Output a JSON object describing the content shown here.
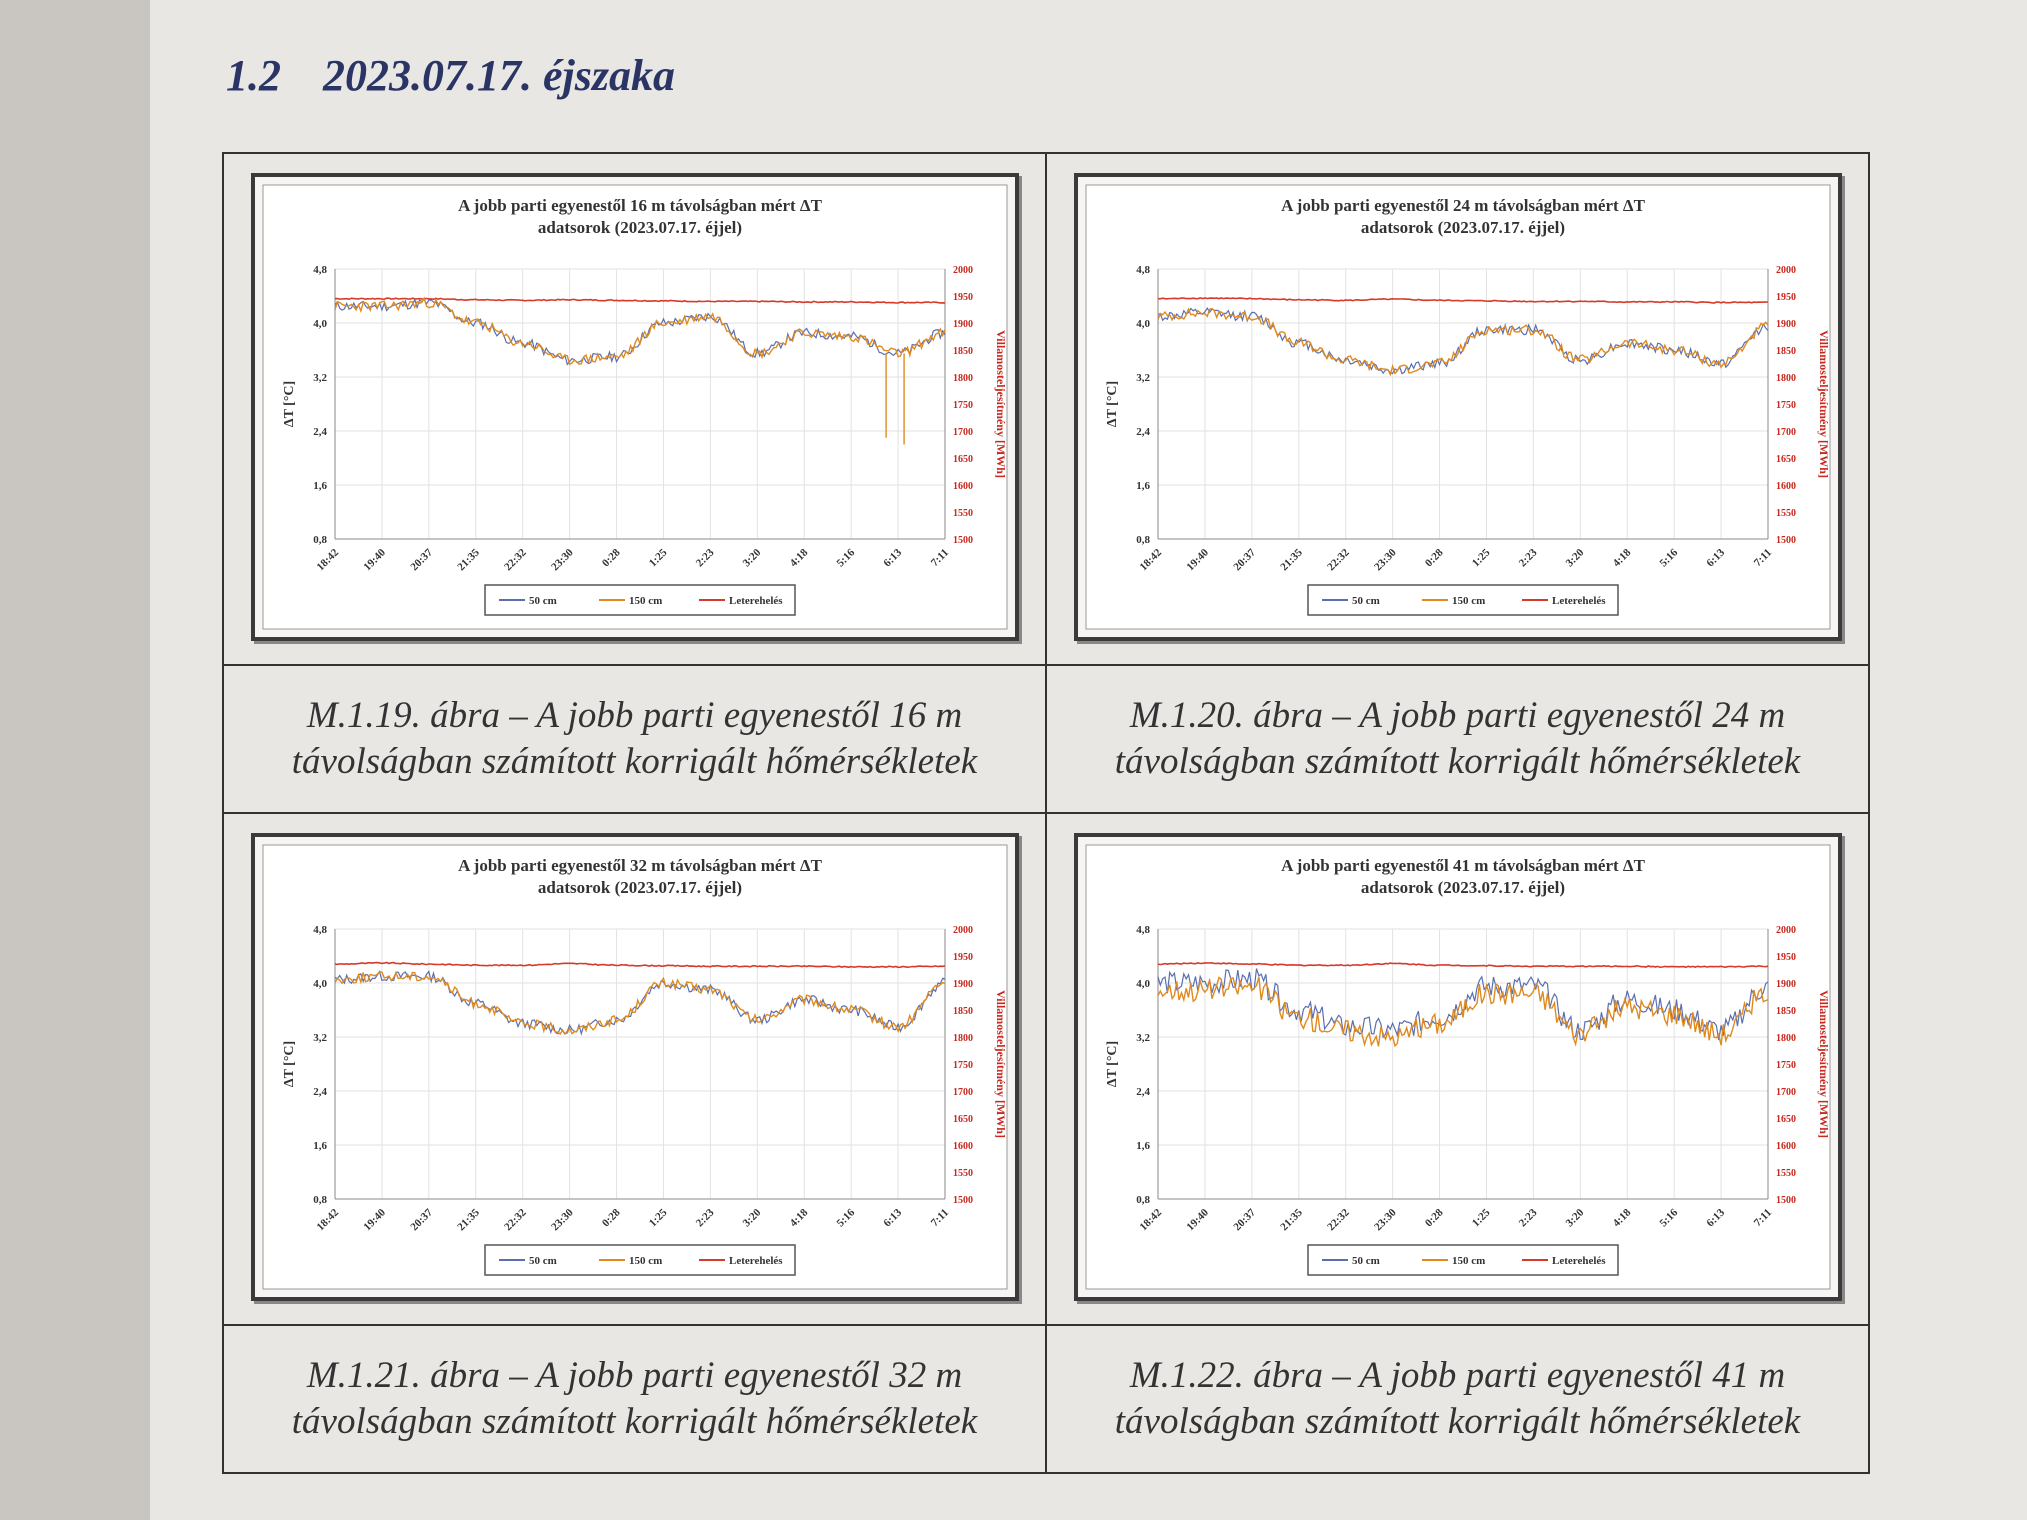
{
  "section": {
    "number": "1.2",
    "title": "2023.07.17. éjszaka"
  },
  "x_ticks": [
    "18:42",
    "19:40",
    "20:37",
    "21:35",
    "22:32",
    "23:30",
    "0:28",
    "1:25",
    "2:23",
    "3:20",
    "4:18",
    "5:16",
    "6:13",
    "7:11"
  ],
  "colors": {
    "s50": "#5b6fb0",
    "s150": "#e08a1e",
    "load": "#d63a2a",
    "right_axis_text": "#c8281e"
  },
  "charts": [
    {
      "title_line1": "A jobb parti egyenestől 16 m távolságban mért ΔT",
      "title_line2": "adatsorok  (2023.07.17. éjjel)",
      "caption_line1": "M.1.19. ábra – A jobb parti egyenestől 16 m",
      "caption_line2": "távolságban számított korrigált hőmérsékletek",
      "ylabel": "ΔT [°C]",
      "y2label": "Villamosteljesítmény [MWh]",
      "y_ticks": [
        "0,8",
        "1,6",
        "2,4",
        "3,2",
        "4,0",
        "4,8"
      ],
      "y2_ticks": [
        "1500",
        "1550",
        "1600",
        "1650",
        "1700",
        "1750",
        "1800",
        "1850",
        "1900",
        "1950",
        "2000"
      ],
      "legend": [
        "50 cm",
        "150 cm",
        "Leterehelés"
      ],
      "chart_data": {
        "type": "line",
        "x": [
          "18:42",
          "19:40",
          "20:37",
          "21:35",
          "22:32",
          "23:30",
          "0:28",
          "1:25",
          "2:23",
          "3:20",
          "4:18",
          "5:16",
          "6:13",
          "7:11"
        ],
        "ylim": [
          0.8,
          4.8
        ],
        "y2lim": [
          1500,
          2000
        ],
        "series": [
          {
            "name": "50 cm",
            "axis": "left",
            "values": [
              4.25,
              4.25,
              4.3,
              4.0,
              3.7,
              3.45,
              3.5,
              4.0,
              4.1,
              3.55,
              3.85,
              3.8,
              3.55,
              3.85
            ]
          },
          {
            "name": "150 cm",
            "axis": "left",
            "values": [
              4.25,
              4.25,
              4.3,
              4.0,
              3.7,
              3.45,
              3.5,
              4.0,
              4.1,
              3.55,
              3.85,
              3.8,
              3.55,
              3.85
            ]
          },
          {
            "name": "Leterehelés",
            "axis": "right",
            "values": [
              1945,
              1945,
              1945,
              1943,
              1942,
              1943,
              1942,
              1941,
              1940,
              1940,
              1939,
              1939,
              1938,
              1938
            ]
          }
        ],
        "dips": [
          {
            "x": "6:13",
            "values": [
              2.3,
              2.2
            ]
          }
        ]
      }
    },
    {
      "title_line1": "A jobb parti egyenestől 24 m távolságban mért ΔT",
      "title_line2": "adatsorok  (2023.07.17. éjjel)",
      "caption_line1": "M.1.20. ábra – A jobb parti egyenestől 24 m",
      "caption_line2": "távolságban számított korrigált hőmérsékletek",
      "ylabel": "ΔT [°C]",
      "y2label": "Villamosteljesítmény [MWh]",
      "y_ticks": [
        "0,8",
        "1,6",
        "2,4",
        "3,2",
        "4,0",
        "4,8"
      ],
      "y2_ticks": [
        "1500",
        "1550",
        "1600",
        "1650",
        "1700",
        "1750",
        "1800",
        "1850",
        "1900",
        "1950",
        "2000"
      ],
      "legend": [
        "50 cm",
        "150 cm",
        "Leterehelés"
      ],
      "chart_data": {
        "type": "line",
        "x": [
          "18:42",
          "19:40",
          "20:37",
          "21:35",
          "22:32",
          "23:30",
          "0:28",
          "1:25",
          "2:23",
          "3:20",
          "4:18",
          "5:16",
          "6:13",
          "7:11"
        ],
        "ylim": [
          0.8,
          4.8
        ],
        "y2lim": [
          1500,
          2000
        ],
        "series": [
          {
            "name": "50 cm",
            "axis": "left",
            "values": [
              4.1,
              4.15,
              4.1,
              3.7,
              3.45,
              3.3,
              3.4,
              3.9,
              3.9,
              3.45,
              3.7,
              3.6,
              3.4,
              3.95
            ]
          },
          {
            "name": "150 cm",
            "axis": "left",
            "values": [
              4.1,
              4.15,
              4.1,
              3.7,
              3.45,
              3.3,
              3.4,
              3.9,
              3.9,
              3.45,
              3.7,
              3.6,
              3.4,
              3.95
            ]
          },
          {
            "name": "Leterehelés",
            "axis": "right",
            "values": [
              1945,
              1946,
              1945,
              1943,
              1942,
              1944,
              1942,
              1941,
              1940,
              1940,
              1939,
              1939,
              1938,
              1938
            ]
          }
        ]
      }
    },
    {
      "title_line1": "A jobb parti egyenestől 32 m távolságban mért ΔT",
      "title_line2": "adatsorok  (2023.07.17. éjjel)",
      "caption_line1": "M.1.21. ábra – A jobb parti egyenestől 32 m",
      "caption_line2": "távolságban számított korrigált hőmérsékletek",
      "ylabel": "ΔT [°C]",
      "y2label": "Villamosteljesítmény [MWh]",
      "y_ticks": [
        "0,8",
        "1,6",
        "2,4",
        "3,2",
        "4,0",
        "4,8"
      ],
      "y2_ticks": [
        "1500",
        "1550",
        "1600",
        "1650",
        "1700",
        "1750",
        "1800",
        "1850",
        "1900",
        "1950",
        "2000"
      ],
      "legend": [
        "50 cm",
        "150 cm",
        "Leterehelés"
      ],
      "chart_data": {
        "type": "line",
        "x": [
          "18:42",
          "19:40",
          "20:37",
          "21:35",
          "22:32",
          "23:30",
          "0:28",
          "1:25",
          "2:23",
          "3:20",
          "4:18",
          "5:16",
          "6:13",
          "7:11"
        ],
        "ylim": [
          0.8,
          4.8
        ],
        "y2lim": [
          1500,
          2000
        ],
        "series": [
          {
            "name": "50 cm",
            "axis": "left",
            "values": [
              4.05,
              4.1,
              4.1,
              3.7,
              3.4,
              3.3,
              3.45,
              4.0,
              3.9,
              3.45,
              3.75,
              3.6,
              3.35,
              4.0
            ]
          },
          {
            "name": "150 cm",
            "axis": "left",
            "values": [
              4.05,
              4.1,
              4.1,
              3.7,
              3.4,
              3.3,
              3.45,
              4.0,
              3.9,
              3.45,
              3.75,
              3.6,
              3.35,
              4.0
            ]
          },
          {
            "name": "Leterehelés",
            "axis": "right",
            "values": [
              1935,
              1937,
              1935,
              1933,
              1933,
              1936,
              1933,
              1932,
              1931,
              1931,
              1931,
              1930,
              1930,
              1931
            ]
          }
        ]
      }
    },
    {
      "title_line1": "A jobb parti egyenestől 41 m távolságban mért ΔT",
      "title_line2": "adatsorok  (2023.07.17. éjjel)",
      "caption_line1": "M.1.22. ábra – A jobb parti egyenestől 41 m",
      "caption_line2": "távolságban számított korrigált hőmérsékletek",
      "ylabel": "ΔT [°C]",
      "y2label": "Villamosteljesítmény [MWh]",
      "y_ticks": [
        "0,8",
        "1,6",
        "2,4",
        "3,2",
        "4,0",
        "4,8"
      ],
      "y2_ticks": [
        "1500",
        "1550",
        "1600",
        "1650",
        "1700",
        "1750",
        "1800",
        "1850",
        "1900",
        "1950",
        "2000"
      ],
      "legend": [
        "50 cm",
        "150 cm",
        "Leterehelés"
      ],
      "chart_data": {
        "type": "line",
        "x": [
          "18:42",
          "19:40",
          "20:37",
          "21:35",
          "22:32",
          "23:30",
          "0:28",
          "1:25",
          "2:23",
          "3:20",
          "4:18",
          "5:16",
          "6:13",
          "7:11"
        ],
        "ylim": [
          0.8,
          4.8
        ],
        "y2lim": [
          1500,
          2000
        ],
        "series": [
          {
            "name": "50 cm",
            "axis": "left",
            "values": [
              4.0,
              4.0,
              4.05,
              3.6,
              3.35,
              3.3,
              3.5,
              3.95,
              3.95,
              3.3,
              3.75,
              3.6,
              3.3,
              3.95
            ]
          },
          {
            "name": "150 cm",
            "axis": "left",
            "values": [
              3.9,
              3.9,
              3.95,
              3.5,
              3.3,
              3.2,
              3.4,
              3.85,
              3.85,
              3.25,
              3.65,
              3.55,
              3.25,
              3.85
            ]
          },
          {
            "name": "Leterehelés",
            "axis": "right",
            "values": [
              1935,
              1937,
              1935,
              1933,
              1933,
              1936,
              1933,
              1932,
              1931,
              1931,
              1931,
              1930,
              1930,
              1931
            ]
          }
        ]
      }
    }
  ]
}
